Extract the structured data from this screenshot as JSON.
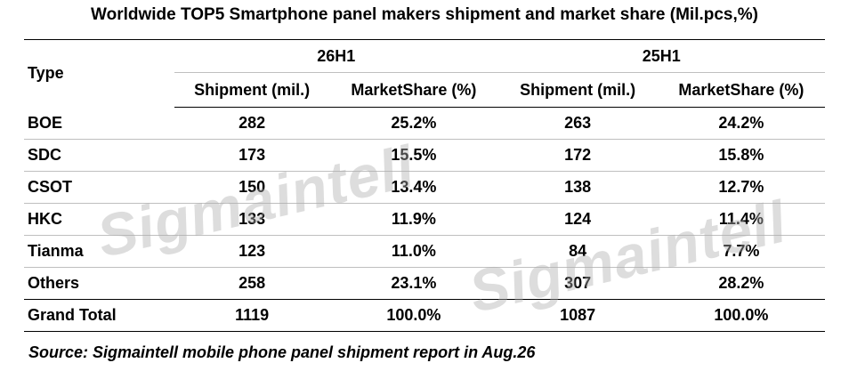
{
  "title": "Worldwide TOP5 Smartphone panel makers shipment and market share (Mil.pcs,%)",
  "watermark": "Sigmaintell",
  "source": "Source: Sigmaintell mobile phone panel shipment report in Aug.26",
  "chart_data": {
    "type": "table",
    "title": "Worldwide TOP5 Smartphone panel makers shipment and market share (Mil.pcs,%)",
    "row_header": "Type",
    "groups": [
      "26H1",
      "25H1"
    ],
    "subheaders": [
      "Shipment (mil.)",
      "MarketShare (%)",
      "Shipment (mil.)",
      "MarketShare (%)"
    ],
    "rows": [
      {
        "type": "BOE",
        "s26": "282",
        "m26": "25.2%",
        "s25": "263",
        "m25": "24.2%"
      },
      {
        "type": "SDC",
        "s26": "173",
        "m26": "15.5%",
        "s25": "172",
        "m25": "15.8%"
      },
      {
        "type": "CSOT",
        "s26": "150",
        "m26": "13.4%",
        "s25": "138",
        "m25": "12.7%"
      },
      {
        "type": "HKC",
        "s26": "133",
        "m26": "11.9%",
        "s25": "124",
        "m25": "11.4%"
      },
      {
        "type": "Tianma",
        "s26": "123",
        "m26": "11.0%",
        "s25": "84",
        "m25": "7.7%"
      },
      {
        "type": "Others",
        "s26": "258",
        "m26": "23.1%",
        "s25": "307",
        "m25": "28.2%"
      }
    ],
    "total": {
      "type": "Grand Total",
      "s26": "1119",
      "m26": "100.0%",
      "s25": "1087",
      "m25": "100.0%"
    }
  }
}
